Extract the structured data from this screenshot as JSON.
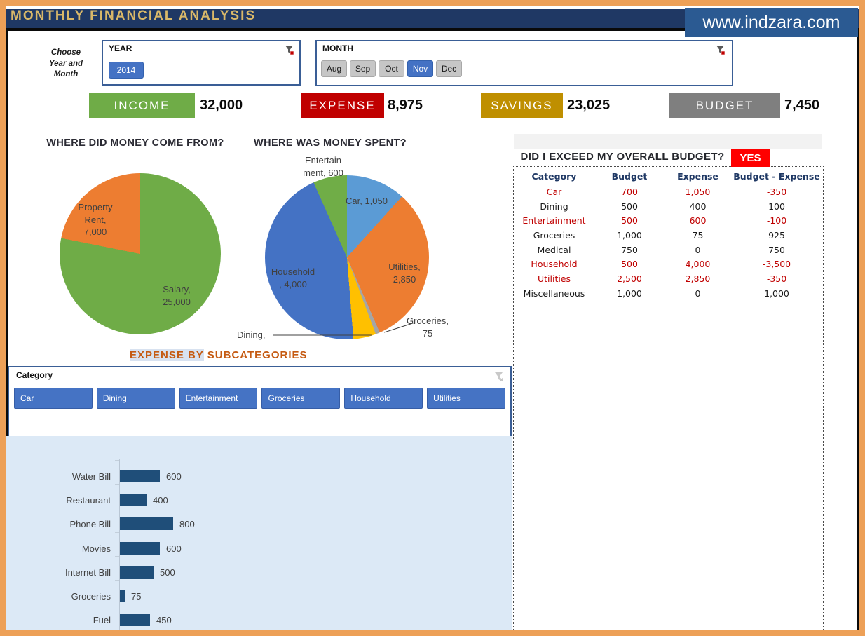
{
  "header": {
    "title": "MONTHLY FINANCIAL ANALYSIS"
  },
  "watermark": {
    "text": "www.indzara.com"
  },
  "filter_hint": "Choose\nYear and\nMonth",
  "slicers": {
    "year": {
      "label": "YEAR",
      "options": [
        {
          "label": "2014",
          "selected": true
        }
      ]
    },
    "month": {
      "label": "MONTH",
      "options": [
        {
          "label": "Aug",
          "selected": false
        },
        {
          "label": "Sep",
          "selected": false
        },
        {
          "label": "Oct",
          "selected": false
        },
        {
          "label": "Nov",
          "selected": true
        },
        {
          "label": "Dec",
          "selected": false
        }
      ]
    },
    "category": {
      "label": "Category",
      "buttons": [
        "Car",
        "Dining",
        "Entertainment",
        "Groceries",
        "Household",
        "Utilities"
      ]
    }
  },
  "kpis": [
    {
      "label": "INCOME",
      "value": "32,000",
      "color": "#6FAC47"
    },
    {
      "label": "EXPENSE",
      "value": "8,975",
      "color": "#C00000"
    },
    {
      "label": "SAVINGS",
      "value": "23,025",
      "color": "#BF8F00"
    },
    {
      "label": "BUDGET",
      "value": "7,450",
      "color": "#7F7F7F"
    }
  ],
  "chart_data": [
    {
      "type": "pie",
      "title": "WHERE DID MONEY COME FROM?",
      "slices": [
        {
          "label": "Salary",
          "value": 25000,
          "color": "#6FAC47"
        },
        {
          "label": "Property Rent",
          "value": 7000,
          "color": "#ED7D31"
        }
      ],
      "labels": [
        "Property\nRent,\n7,000",
        "Salary,\n25,000"
      ]
    },
    {
      "type": "pie",
      "title": "WHERE WAS MONEY SPENT?",
      "slices": [
        {
          "label": "Car",
          "value": 1050,
          "color": "#5B9BD5"
        },
        {
          "label": "Utilities",
          "value": 2850,
          "color": "#ED7D31"
        },
        {
          "label": "Groceries",
          "value": 75,
          "color": "#A5A5A5"
        },
        {
          "label": "Dining",
          "value": 400,
          "color": "#FFC000"
        },
        {
          "label": "Household",
          "value": 4000,
          "color": "#4472C4"
        },
        {
          "label": "Entertainment",
          "value": 600,
          "color": "#70AD47"
        }
      ],
      "labels": [
        "Entertain\nment, 600",
        "Car, 1,050",
        "Utilities,\n2,850",
        "Household\n, 4,000",
        "Groceries,\n75",
        "Dining,"
      ]
    },
    {
      "type": "bar",
      "title": "Expense by subcategories",
      "categories": [
        "Water Bill",
        "Restaurant",
        "Phone Bill",
        "Movies",
        "Internet Bill",
        "Groceries",
        "Fuel"
      ],
      "values": [
        600,
        400,
        800,
        600,
        500,
        75,
        450
      ],
      "displays": [
        "600",
        "400",
        "800",
        "600",
        "500",
        "75",
        "450"
      ],
      "bar_color": "#1F4E79",
      "xlim": [
        0,
        800
      ],
      "grid": false,
      "legend": "none"
    }
  ],
  "subcat_heading": {
    "highlight": "EXPENSE BY",
    "rest": " SUBCATEGORIES"
  },
  "budget_panel": {
    "question": "DID I EXCEED MY OVERALL BUDGET?",
    "verdict": "YES",
    "headers": [
      "Category",
      "Budget",
      "Expense",
      "Budget - Expense"
    ],
    "rows": [
      {
        "category": "Car",
        "budget": "700",
        "expense": "1,050",
        "diff": "-350",
        "over": true
      },
      {
        "category": "Dining",
        "budget": "500",
        "expense": "400",
        "diff": "100",
        "over": false
      },
      {
        "category": "Entertainment",
        "budget": "500",
        "expense": "600",
        "diff": "-100",
        "over": true
      },
      {
        "category": "Groceries",
        "budget": "1,000",
        "expense": "75",
        "diff": "925",
        "over": false
      },
      {
        "category": "Medical",
        "budget": "750",
        "expense": "0",
        "diff": "750",
        "over": false
      },
      {
        "category": "Household",
        "budget": "500",
        "expense": "4,000",
        "diff": "-3,500",
        "over": true
      },
      {
        "category": "Utilities",
        "budget": "2,500",
        "expense": "2,850",
        "diff": "-350",
        "over": true
      },
      {
        "category": "Miscellaneous",
        "budget": "1,000",
        "expense": "0",
        "diff": "1,000",
        "over": false
      }
    ]
  }
}
